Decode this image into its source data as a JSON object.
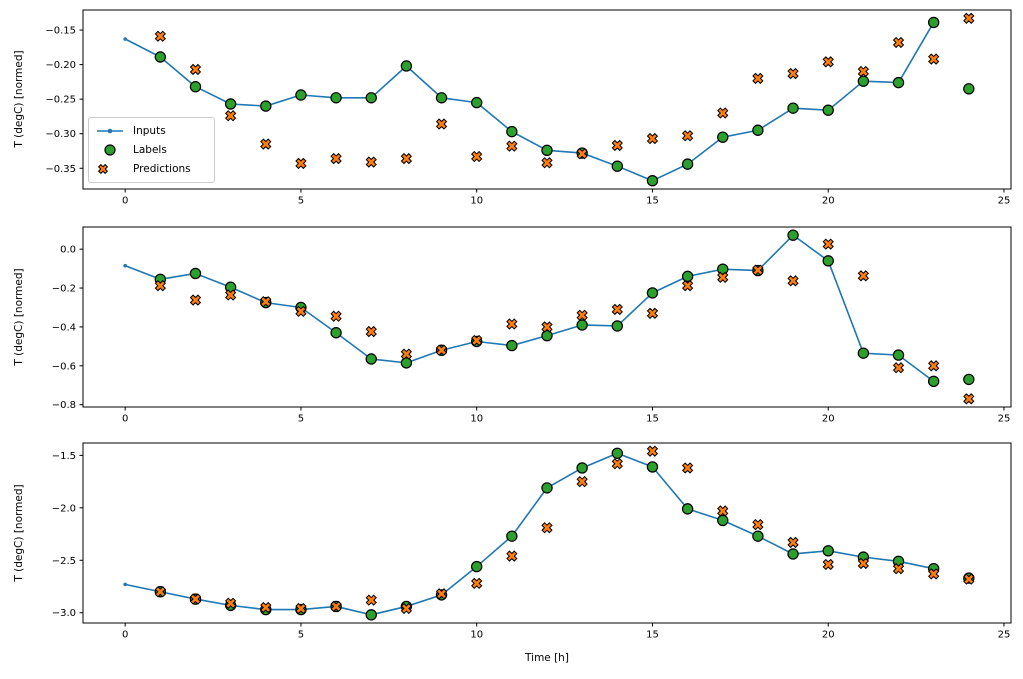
{
  "figure": {
    "background": "#ffffff",
    "axis_color": "#000000",
    "xlabel": "Time [h]",
    "ylabel": "T (degC) [normed]",
    "legend": {
      "items": [
        {
          "label": "Inputs",
          "icon": "inputs-line-dot-marker",
          "color": "#1f77b4"
        },
        {
          "label": "Labels",
          "icon": "labels-circle-marker",
          "color": "#2ca02c"
        },
        {
          "label": "Predictions",
          "icon": "predictions-x-marker",
          "color": "#ff7f0e"
        }
      ]
    }
  },
  "chart_data": [
    {
      "type": "line",
      "panel": 1,
      "title": "",
      "xlabel": "",
      "ylabel": "T (degC) [normed]",
      "xlim": [
        -1.2,
        25.2
      ],
      "ylim": [
        -0.38,
        -0.121
      ],
      "xticks": [
        0,
        5,
        10,
        15,
        20,
        25
      ],
      "xtick_labels": [
        "0",
        "5",
        "10",
        "15",
        "20",
        "25"
      ],
      "yticks": [
        -0.15,
        -0.2,
        -0.25,
        -0.3,
        -0.35
      ],
      "ytick_labels": [
        "−0.15",
        "−0.20",
        "−0.25",
        "−0.30",
        "−0.35"
      ],
      "legend_visible": true,
      "series": [
        {
          "name": "Inputs",
          "kind": "line",
          "color": "#1f77b4",
          "x": [
            0,
            1,
            2,
            3,
            4,
            5,
            6,
            7,
            8,
            9,
            10,
            11,
            12,
            13,
            14,
            15,
            16,
            17,
            18,
            19,
            20,
            21,
            22,
            23
          ],
          "values": [
            -0.163,
            -0.189,
            -0.232,
            -0.257,
            -0.26,
            -0.244,
            -0.248,
            -0.248,
            -0.202,
            -0.248,
            -0.255,
            -0.297,
            -0.324,
            -0.328,
            -0.347,
            -0.368,
            -0.344,
            -0.305,
            -0.295,
            -0.263,
            -0.266,
            -0.224,
            -0.226,
            -0.139
          ]
        },
        {
          "name": "Labels",
          "kind": "scatter_circle",
          "color": "#2ca02c",
          "x": [
            1,
            2,
            3,
            4,
            5,
            6,
            7,
            8,
            9,
            10,
            11,
            12,
            13,
            14,
            15,
            16,
            17,
            18,
            19,
            20,
            21,
            22,
            23,
            24
          ],
          "values": [
            -0.189,
            -0.232,
            -0.257,
            -0.26,
            -0.244,
            -0.248,
            -0.248,
            -0.202,
            -0.248,
            -0.255,
            -0.297,
            -0.324,
            -0.328,
            -0.347,
            -0.368,
            -0.344,
            -0.305,
            -0.295,
            -0.263,
            -0.266,
            -0.224,
            -0.226,
            -0.139,
            -0.235
          ]
        },
        {
          "name": "Predictions",
          "kind": "scatter_x",
          "color": "#ff7f0e",
          "x": [
            1,
            2,
            3,
            4,
            5,
            6,
            7,
            8,
            9,
            10,
            11,
            12,
            13,
            14,
            15,
            16,
            17,
            18,
            19,
            20,
            21,
            22,
            23,
            24
          ],
          "values": [
            -0.159,
            -0.207,
            -0.274,
            -0.315,
            -0.343,
            -0.336,
            -0.341,
            -0.336,
            -0.286,
            -0.333,
            -0.318,
            -0.342,
            -0.329,
            -0.317,
            -0.307,
            -0.303,
            -0.27,
            -0.22,
            -0.213,
            -0.196,
            -0.21,
            -0.168,
            -0.192,
            -0.133
          ]
        }
      ]
    },
    {
      "type": "line",
      "panel": 2,
      "title": "",
      "xlabel": "",
      "ylabel": "T (degC) [normed]",
      "xlim": [
        -1.2,
        25.2
      ],
      "ylim": [
        -0.812,
        0.114
      ],
      "xticks": [
        0,
        5,
        10,
        15,
        20,
        25
      ],
      "xtick_labels": [
        "0",
        "5",
        "10",
        "15",
        "20",
        "25"
      ],
      "yticks": [
        0.0,
        -0.2,
        -0.4,
        -0.6,
        -0.8
      ],
      "ytick_labels": [
        "0.0",
        "−0.2",
        "−0.4",
        "−0.6",
        "−0.8"
      ],
      "legend_visible": false,
      "series": [
        {
          "name": "Inputs",
          "kind": "line",
          "color": "#1f77b4",
          "x": [
            0,
            1,
            2,
            3,
            4,
            5,
            6,
            7,
            8,
            9,
            10,
            11,
            12,
            13,
            14,
            15,
            16,
            17,
            18,
            19,
            20,
            21,
            22,
            23
          ],
          "values": [
            -0.085,
            -0.155,
            -0.125,
            -0.196,
            -0.275,
            -0.3,
            -0.43,
            -0.565,
            -0.585,
            -0.52,
            -0.475,
            -0.496,
            -0.445,
            -0.39,
            -0.395,
            -0.225,
            -0.14,
            -0.103,
            -0.11,
            0.072,
            -0.06,
            -0.535,
            -0.545,
            -0.68
          ]
        },
        {
          "name": "Labels",
          "kind": "scatter_circle",
          "color": "#2ca02c",
          "x": [
            1,
            2,
            3,
            4,
            5,
            6,
            7,
            8,
            9,
            10,
            11,
            12,
            13,
            14,
            15,
            16,
            17,
            18,
            19,
            20,
            21,
            22,
            23,
            24
          ],
          "values": [
            -0.155,
            -0.125,
            -0.196,
            -0.275,
            -0.3,
            -0.43,
            -0.565,
            -0.585,
            -0.52,
            -0.475,
            -0.496,
            -0.445,
            -0.39,
            -0.395,
            -0.225,
            -0.14,
            -0.103,
            -0.11,
            0.072,
            -0.06,
            -0.535,
            -0.545,
            -0.68,
            -0.67
          ]
        },
        {
          "name": "Predictions",
          "kind": "scatter_x",
          "color": "#ff7f0e",
          "x": [
            1,
            2,
            3,
            4,
            5,
            6,
            7,
            8,
            9,
            10,
            11,
            12,
            13,
            14,
            15,
            16,
            17,
            18,
            19,
            20,
            21,
            22,
            23,
            24
          ],
          "values": [
            -0.188,
            -0.262,
            -0.236,
            -0.27,
            -0.32,
            -0.345,
            -0.424,
            -0.54,
            -0.52,
            -0.47,
            -0.385,
            -0.4,
            -0.34,
            -0.31,
            -0.33,
            -0.188,
            -0.145,
            -0.108,
            -0.163,
            0.026,
            -0.137,
            -0.61,
            -0.6,
            -0.77
          ]
        }
      ]
    },
    {
      "type": "line",
      "panel": 3,
      "title": "",
      "xlabel": "Time [h]",
      "ylabel": "T (degC) [normed]",
      "xlim": [
        -1.2,
        25.2
      ],
      "ylim": [
        -3.098,
        -1.382
      ],
      "xticks": [
        0,
        5,
        10,
        15,
        20,
        25
      ],
      "xtick_labels": [
        "0",
        "5",
        "10",
        "15",
        "20",
        "25"
      ],
      "yticks": [
        -1.5,
        -2.0,
        -2.5,
        -3.0
      ],
      "ytick_labels": [
        "−1.5",
        "−2.0",
        "−2.5",
        "−3.0"
      ],
      "legend_visible": false,
      "series": [
        {
          "name": "Inputs",
          "kind": "line",
          "color": "#1f77b4",
          "x": [
            0,
            1,
            2,
            3,
            4,
            5,
            6,
            7,
            8,
            9,
            10,
            11,
            12,
            13,
            14,
            15,
            16,
            17,
            18,
            19,
            20,
            21,
            22,
            23
          ],
          "values": [
            -2.73,
            -2.8,
            -2.87,
            -2.93,
            -2.97,
            -2.97,
            -2.94,
            -3.02,
            -2.94,
            -2.83,
            -2.56,
            -2.27,
            -1.81,
            -1.62,
            -1.48,
            -1.61,
            -2.01,
            -2.12,
            -2.27,
            -2.44,
            -2.41,
            -2.47,
            -2.51,
            -2.58
          ]
        },
        {
          "name": "Labels",
          "kind": "scatter_circle",
          "color": "#2ca02c",
          "x": [
            1,
            2,
            3,
            4,
            5,
            6,
            7,
            8,
            9,
            10,
            11,
            12,
            13,
            14,
            15,
            16,
            17,
            18,
            19,
            20,
            21,
            22,
            23,
            24
          ],
          "values": [
            -2.8,
            -2.87,
            -2.93,
            -2.97,
            -2.97,
            -2.94,
            -3.02,
            -2.94,
            -2.83,
            -2.56,
            -2.27,
            -1.81,
            -1.62,
            -1.48,
            -1.61,
            -2.01,
            -2.12,
            -2.27,
            -2.44,
            -2.41,
            -2.47,
            -2.51,
            -2.58,
            -2.67
          ]
        },
        {
          "name": "Predictions",
          "kind": "scatter_x",
          "color": "#ff7f0e",
          "x": [
            1,
            2,
            3,
            4,
            5,
            6,
            7,
            8,
            9,
            10,
            11,
            12,
            13,
            14,
            15,
            16,
            17,
            18,
            19,
            20,
            21,
            22,
            23,
            24
          ],
          "values": [
            -2.8,
            -2.87,
            -2.91,
            -2.95,
            -2.96,
            -2.94,
            -2.88,
            -2.96,
            -2.82,
            -2.72,
            -2.46,
            -2.19,
            -1.75,
            -1.58,
            -1.46,
            -1.62,
            -2.03,
            -2.16,
            -2.33,
            -2.54,
            -2.53,
            -2.58,
            -2.63,
            -2.68
          ]
        }
      ]
    }
  ]
}
